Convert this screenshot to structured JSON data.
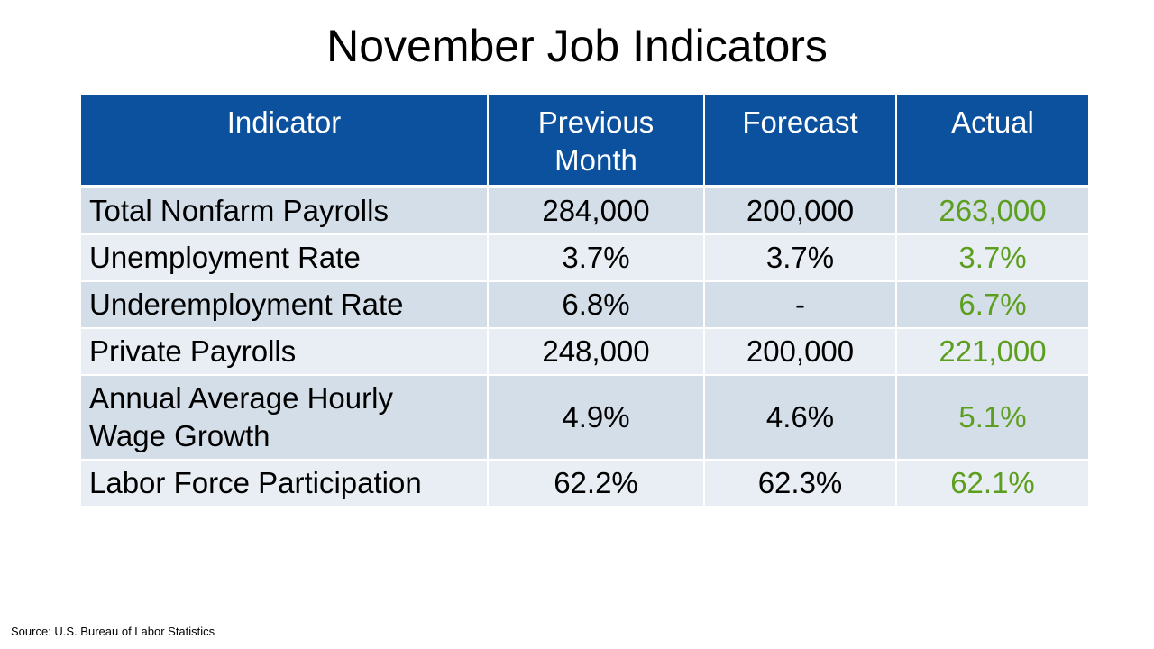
{
  "title": "November Job Indicators",
  "table": {
    "header": [
      "Indicator",
      "Previous Month",
      "Forecast",
      "Actual"
    ],
    "rows": [
      [
        "Total Nonfarm Payrolls",
        "284,000",
        "200,000",
        "263,000"
      ],
      [
        "Unemployment Rate",
        "3.7%",
        "3.7%",
        "3.7%"
      ],
      [
        "Underemployment Rate",
        "6.8%",
        "-",
        "6.7%"
      ],
      [
        "Private Payrolls",
        "248,000",
        "200,000",
        "221,000"
      ],
      [
        "Annual Average Hourly Wage Growth",
        "4.9%",
        "4.6%",
        "5.1%"
      ],
      [
        "Labor Force Participation",
        "62.2%",
        "62.3%",
        "62.1%"
      ]
    ]
  },
  "source": "Source: U.S. Bureau of Labor Statistics"
}
